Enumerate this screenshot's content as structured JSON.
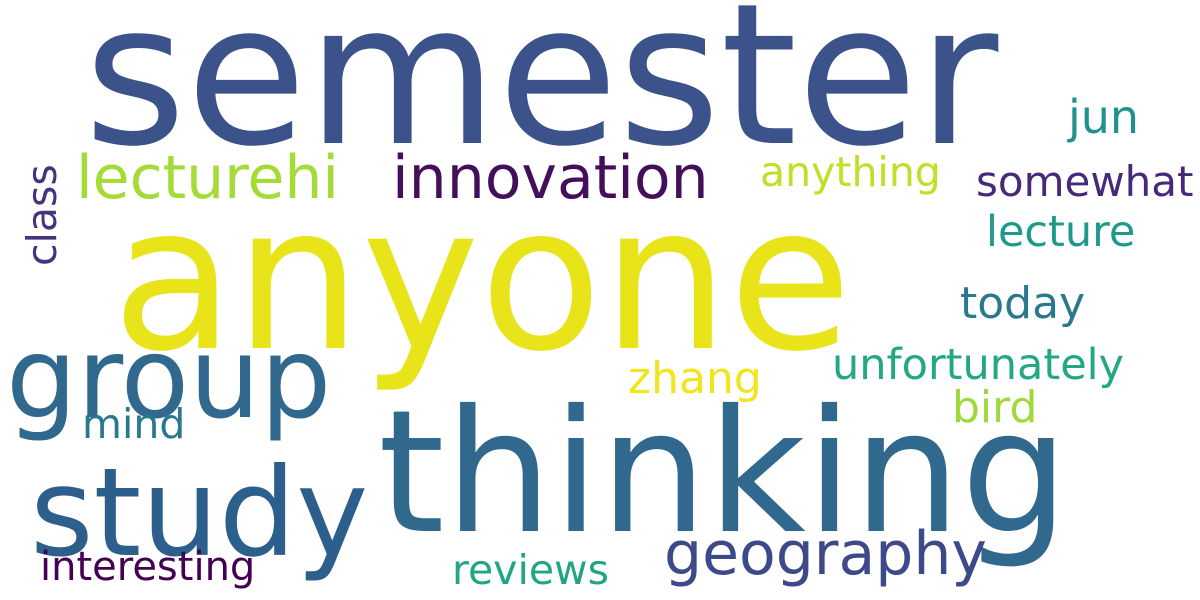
{
  "words": [
    {
      "text": "semester",
      "color": "#3b528b"
    },
    {
      "text": "anyone",
      "color": "#e8e419"
    },
    {
      "text": "thinking",
      "color": "#31688e"
    },
    {
      "text": "group",
      "color": "#31688e"
    },
    {
      "text": "study",
      "color": "#2d5f8c"
    },
    {
      "text": "lecturehi",
      "color": "#a5db36"
    },
    {
      "text": "innovation",
      "color": "#440e5b"
    },
    {
      "text": "geography",
      "color": "#3e4989"
    },
    {
      "text": "anything",
      "color": "#c0df25"
    },
    {
      "text": "somewhat",
      "color": "#482878"
    },
    {
      "text": "jun",
      "color": "#21918c"
    },
    {
      "text": "lecture",
      "color": "#1f9a8a"
    },
    {
      "text": "today",
      "color": "#2a788e"
    },
    {
      "text": "unfortunately",
      "color": "#22a884"
    },
    {
      "text": "zhang",
      "color": "#f1e51d"
    },
    {
      "text": "bird",
      "color": "#9fda3a"
    },
    {
      "text": "mind",
      "color": "#2a788e"
    },
    {
      "text": "reviews",
      "color": "#21a685"
    },
    {
      "text": "interesting",
      "color": "#440154"
    },
    {
      "text": "class",
      "color": "#46337e"
    }
  ]
}
